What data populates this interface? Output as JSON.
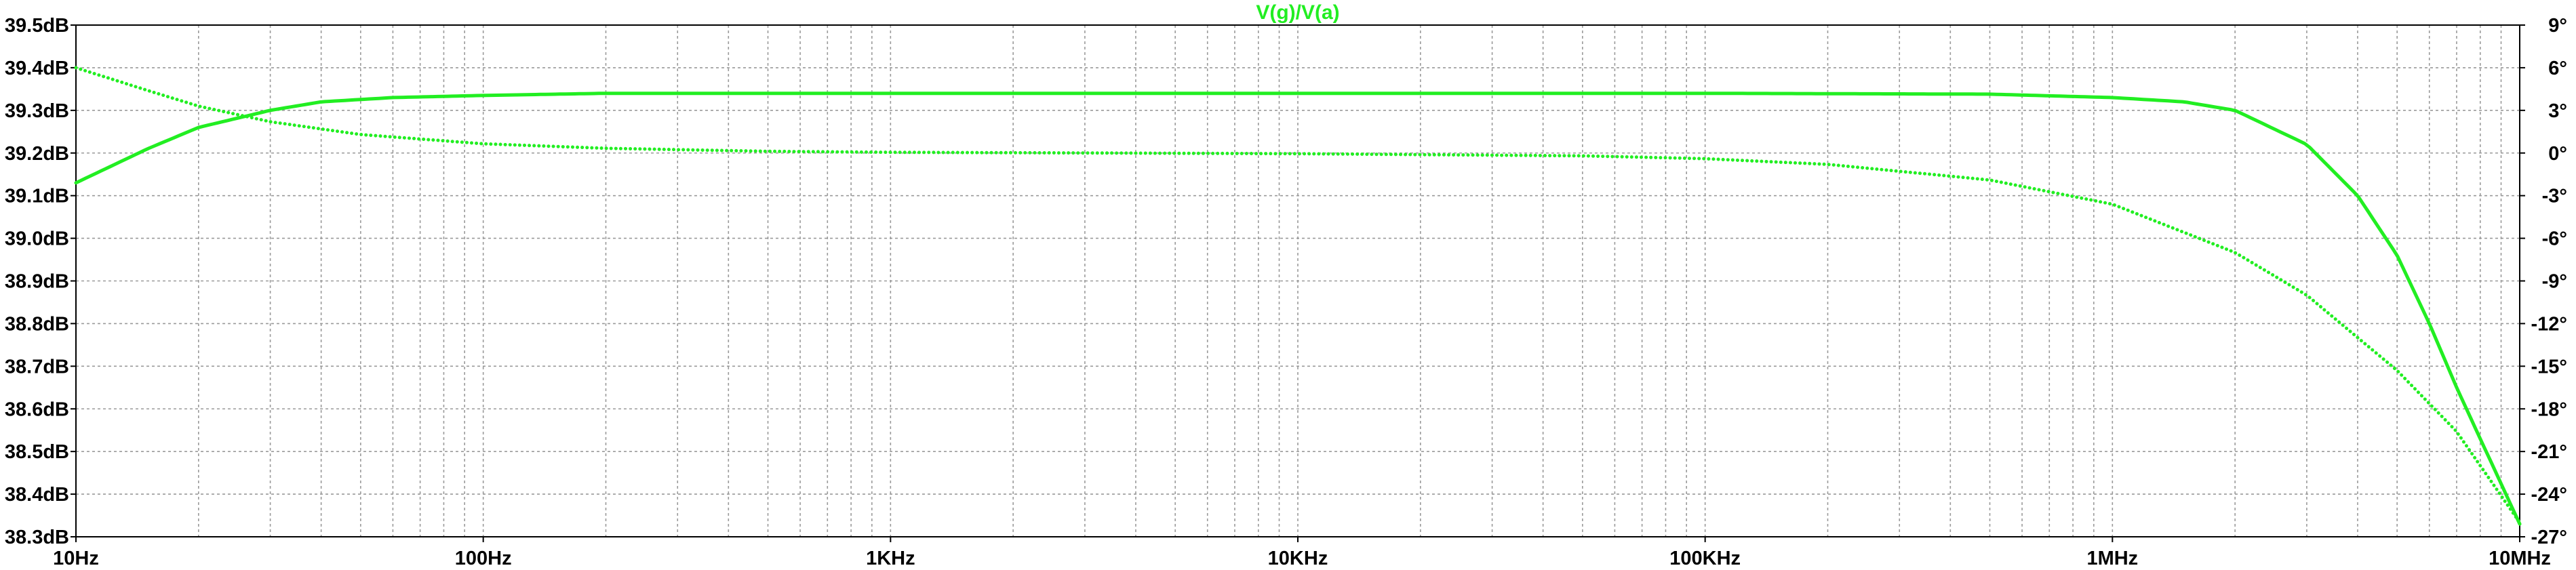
{
  "chart_data": {
    "type": "line",
    "title": "V(g)/V(a)",
    "title_color": "#22ee22",
    "trace_color": "#22ee22",
    "background": "#ffffff",
    "grid": true,
    "grid_style": "dotted",
    "x_scale": "log",
    "xlim_hz": [
      10,
      10000000
    ],
    "x_ticks": [
      {
        "value": 10,
        "label": "10Hz"
      },
      {
        "value": 100,
        "label": "100Hz"
      },
      {
        "value": 1000,
        "label": "1KHz"
      },
      {
        "value": 10000,
        "label": "10KHz"
      },
      {
        "value": 100000,
        "label": "100KHz"
      },
      {
        "value": 1000000,
        "label": "1MHz"
      },
      {
        "value": 10000000,
        "label": "10MHz"
      }
    ],
    "y_left": {
      "ylim": [
        38.3,
        39.5
      ],
      "ticks": [
        {
          "value": 39.5,
          "label": "39.5dB"
        },
        {
          "value": 39.4,
          "label": "39.4dB"
        },
        {
          "value": 39.3,
          "label": "39.3dB"
        },
        {
          "value": 39.2,
          "label": "39.2dB"
        },
        {
          "value": 39.1,
          "label": "39.1dB"
        },
        {
          "value": 39.0,
          "label": "39.0dB"
        },
        {
          "value": 38.9,
          "label": "38.9dB"
        },
        {
          "value": 38.8,
          "label": "38.8dB"
        },
        {
          "value": 38.7,
          "label": "38.7dB"
        },
        {
          "value": 38.6,
          "label": "38.6dB"
        },
        {
          "value": 38.5,
          "label": "38.5dB"
        },
        {
          "value": 38.4,
          "label": "38.4dB"
        },
        {
          "value": 38.3,
          "label": "38.3dB"
        }
      ]
    },
    "y_right": {
      "ylim": [
        -27,
        9
      ],
      "ticks": [
        {
          "value": 9,
          "label": "9°"
        },
        {
          "value": 6,
          "label": "6°"
        },
        {
          "value": 3,
          "label": "3°"
        },
        {
          "value": 0,
          "label": "0°"
        },
        {
          "value": -3,
          "label": "-3°"
        },
        {
          "value": -6,
          "label": "-6°"
        },
        {
          "value": -9,
          "label": "-9°"
        },
        {
          "value": -12,
          "label": "-12°"
        },
        {
          "value": -15,
          "label": "-15°"
        },
        {
          "value": -18,
          "label": "-18°"
        },
        {
          "value": -21,
          "label": "-21°"
        },
        {
          "value": -24,
          "label": "-24°"
        },
        {
          "value": -27,
          "label": "-27°"
        }
      ]
    },
    "series": [
      {
        "axis": "left",
        "style": "solid",
        "x": [
          10,
          15,
          20,
          30,
          40,
          60,
          100,
          200,
          500,
          1000,
          10000,
          100000,
          500000,
          1000000,
          1500000,
          2000000,
          3000000,
          4000000,
          5000000,
          6000000,
          7000000,
          8000000,
          10000000
        ],
        "y": [
          39.13,
          39.21,
          39.26,
          39.3,
          39.32,
          39.33,
          39.335,
          39.34,
          39.34,
          39.34,
          39.34,
          39.34,
          39.338,
          39.33,
          39.32,
          39.3,
          39.22,
          39.1,
          38.96,
          38.8,
          38.65,
          38.53,
          38.33
        ]
      },
      {
        "axis": "right",
        "style": "dotted",
        "x": [
          10,
          15,
          20,
          30,
          50,
          100,
          200,
          500,
          1000,
          10000,
          50000,
          100000,
          200000,
          500000,
          1000000,
          2000000,
          3000000,
          5000000,
          7000000,
          10000000
        ],
        "y": [
          6.0,
          4.4,
          3.3,
          2.2,
          1.3,
          0.65,
          0.33,
          0.12,
          0.05,
          -0.05,
          -0.2,
          -0.4,
          -0.8,
          -1.9,
          -3.6,
          -7.0,
          -10.0,
          -15.3,
          -19.6,
          -26.0
        ]
      }
    ]
  }
}
